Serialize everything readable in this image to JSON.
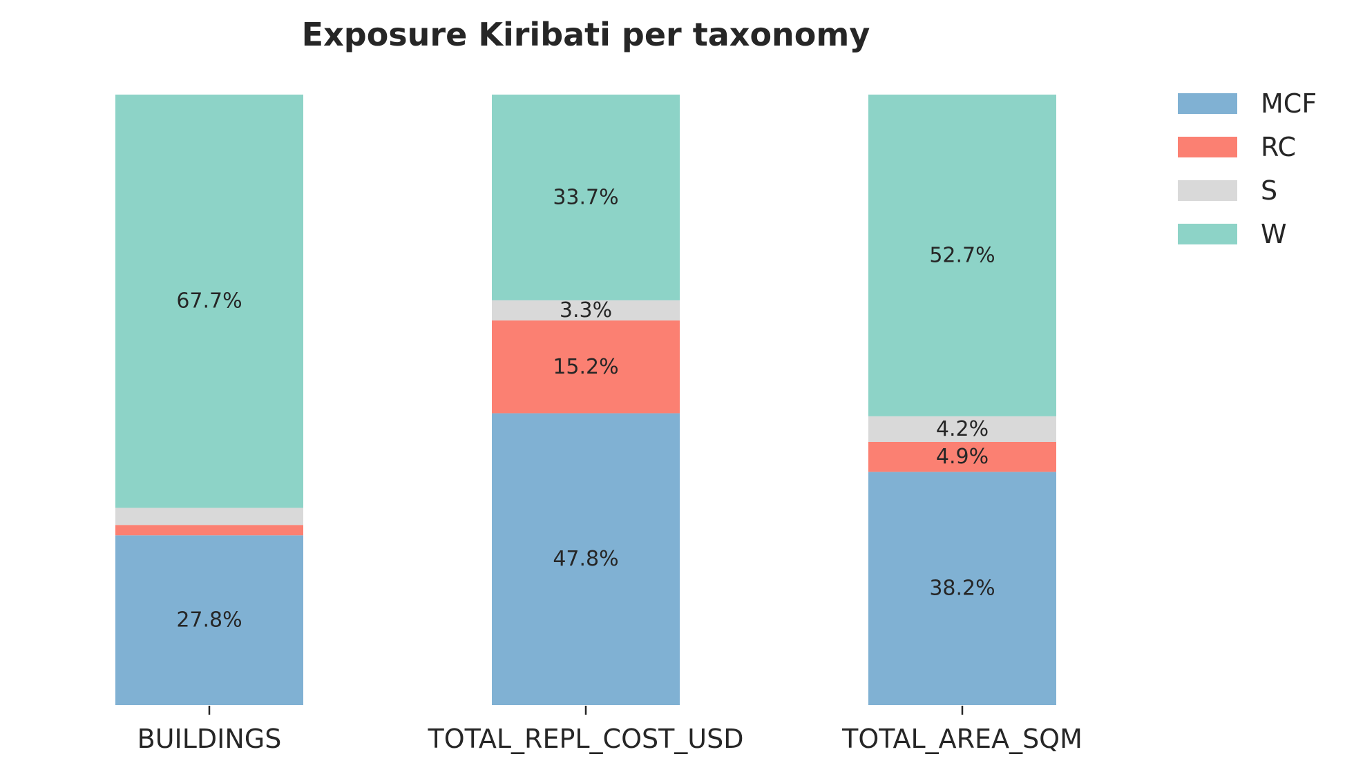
{
  "chart_data": {
    "type": "bar",
    "stacked": true,
    "title": "Exposure Kiribati per taxonomy",
    "xlabel": "",
    "ylabel": "",
    "ylim": [
      0,
      100
    ],
    "grid": false,
    "legend_position": "top-right",
    "categories": [
      "BUILDINGS",
      "TOTAL_REPL_COST_USD",
      "TOTAL_AREA_SQM"
    ],
    "series": [
      {
        "name": "MCF",
        "color": "#80b1d3",
        "values": [
          27.8,
          47.8,
          38.2
        ],
        "labels": [
          "27.8%",
          "47.8%",
          "38.2%"
        ]
      },
      {
        "name": "RC",
        "color": "#fb8072",
        "values": [
          1.7,
          15.2,
          4.9
        ],
        "labels": [
          "",
          "15.2%",
          "4.9%"
        ]
      },
      {
        "name": "S",
        "color": "#d9d9d9",
        "values": [
          2.8,
          3.3,
          4.2
        ],
        "labels": [
          "",
          "3.3%",
          "4.2%"
        ]
      },
      {
        "name": "W",
        "color": "#8dd3c7",
        "values": [
          67.7,
          33.7,
          52.7
        ],
        "labels": [
          "67.7%",
          "33.7%",
          "52.7%"
        ]
      }
    ]
  }
}
